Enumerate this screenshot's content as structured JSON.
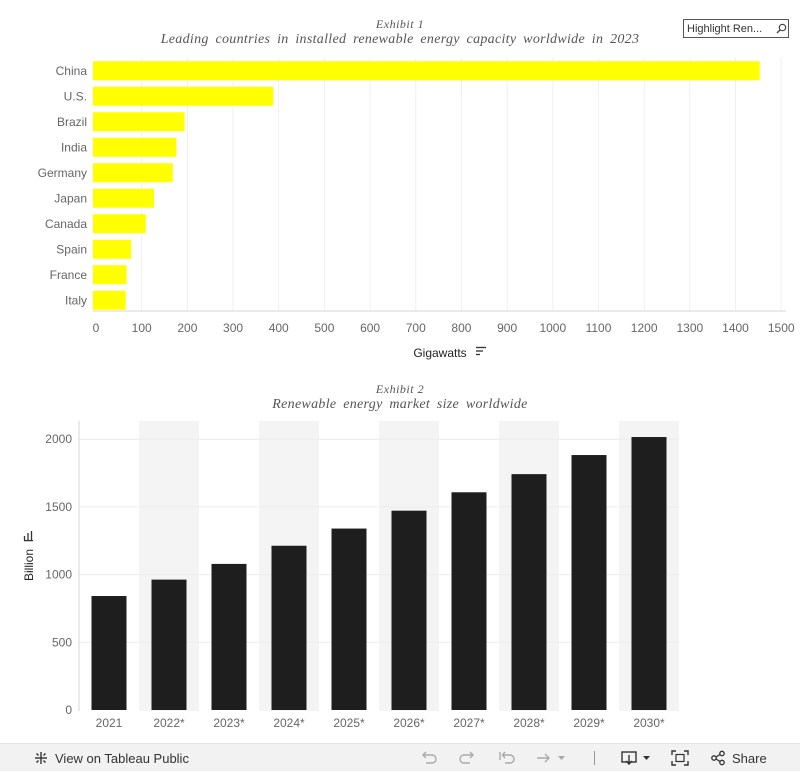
{
  "search": {
    "placeholder": "Highlight Ren..."
  },
  "chart_data": [
    {
      "type": "bar",
      "orientation": "horizontal",
      "exhibit": "Exhibit 1",
      "title": "Leading countries in installed renewable energy capacity worldwide in 2023",
      "xlabel": "Gigawatts",
      "ylabel": "",
      "categories": [
        "China",
        "U.S.",
        "Brazil",
        "India",
        "Germany",
        "Japan",
        "Canada",
        "Spain",
        "France",
        "Italy"
      ],
      "values": [
        1453,
        388,
        194,
        176,
        168,
        127,
        109,
        77,
        67,
        65
      ],
      "xlim": [
        0,
        1550
      ],
      "ticks": [
        0,
        100,
        200,
        300,
        400,
        500,
        600,
        700,
        800,
        900,
        1000,
        1100,
        1200,
        1300,
        1400,
        1500
      ],
      "bar_color": "#ffff00",
      "grid": true
    },
    {
      "type": "bar",
      "orientation": "vertical",
      "exhibit": "Exhibit 2",
      "title": "Renewable energy market size worldwide",
      "xlabel": "",
      "ylabel": "Billion",
      "categories": [
        "2021",
        "2022*",
        "2023*",
        "2024*",
        "2025*",
        "2026*",
        "2027*",
        "2028*",
        "2029*",
        "2030*"
      ],
      "values": [
        842,
        963,
        1079,
        1213,
        1340,
        1472,
        1608,
        1742,
        1883,
        2016
      ],
      "ylim": [
        0,
        2130
      ],
      "ticks": [
        0,
        500,
        1000,
        1500,
        2000
      ],
      "bar_color": "#1e1e1e",
      "band_color": "#f4f4f4",
      "grid": true
    }
  ],
  "toolbar": {
    "view_label": "View on Tableau Public",
    "share_label": "Share"
  }
}
